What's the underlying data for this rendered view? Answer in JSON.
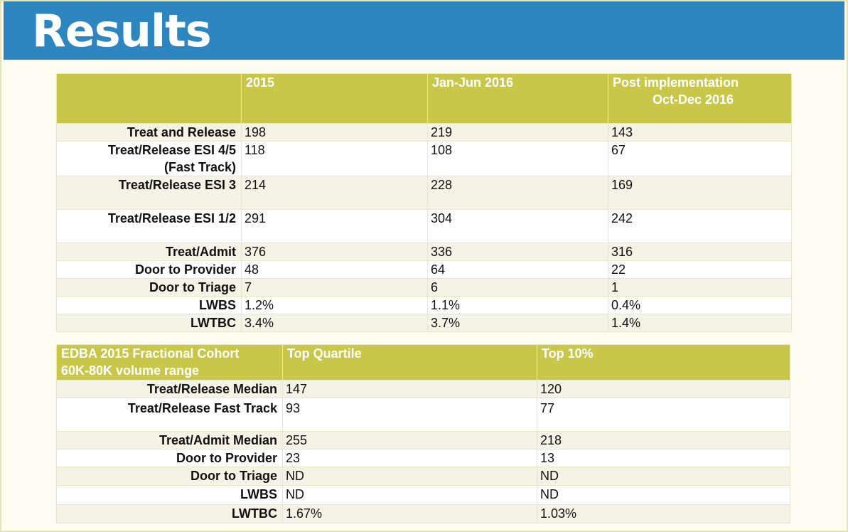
{
  "title": "Results",
  "table1": {
    "headers": [
      "",
      "2015",
      "Jan-Jun 2016",
      "Post implementation Oct-Dec 2016"
    ],
    "header_col3_line1": "Post implementation",
    "header_col3_line2": "Oct-Dec 2016",
    "rows": [
      {
        "label": "Treat and Release",
        "values": [
          "198",
          "219",
          "143"
        ]
      },
      {
        "label": "Treat/Release ESI 4/5 (Fast Track)",
        "label_line1": "Treat/Release ESI 4/5",
        "label_line2": "(Fast Track)",
        "values": [
          "118",
          "108",
          "67"
        ]
      },
      {
        "label": "Treat/Release ESI 3",
        "values": [
          "214",
          "228",
          "169"
        ]
      },
      {
        "label": "Treat/Release ESI 1/2",
        "values": [
          "291",
          "304",
          "242"
        ]
      },
      {
        "label": "Treat/Admit",
        "values": [
          "376",
          "336",
          "316"
        ]
      },
      {
        "label": "Door to Provider",
        "values": [
          "48",
          "64",
          "22"
        ]
      },
      {
        "label": "Door to Triage",
        "values": [
          "7",
          "6",
          "1"
        ]
      },
      {
        "label": "LWBS",
        "values": [
          "1.2%",
          "1.1%",
          "0.4%"
        ]
      },
      {
        "label": "LWTBC",
        "values": [
          "3.4%",
          "3.7%",
          "1.4%"
        ]
      }
    ]
  },
  "table2": {
    "headers": [
      "EDBA 2015 Fractional Cohort 60K-80K volume range",
      "Top Quartile",
      "Top 10%"
    ],
    "header_col1_line1": "EDBA 2015 Fractional Cohort",
    "header_col1_line2": "60K-80K volume range",
    "rows": [
      {
        "label": "Treat/Release Median",
        "values": [
          "147",
          "120"
        ]
      },
      {
        "label": "Treat/Release Fast Track",
        "values": [
          "93",
          "77"
        ]
      },
      {
        "label": "Treat/Admit Median",
        "values": [
          "255",
          "218"
        ]
      },
      {
        "label": "Door to Provider",
        "values": [
          "23",
          "13"
        ]
      },
      {
        "label": "Door to Triage",
        "values": [
          "ND",
          "ND"
        ]
      },
      {
        "label": "LWBS",
        "values": [
          "ND",
          "ND"
        ]
      },
      {
        "label": "LWTBC",
        "values": [
          "1.67%",
          "1.03%"
        ]
      }
    ]
  },
  "colors": {
    "title_bar": "#2e86c1",
    "header_fill": "#c8c74a",
    "row_band": "#f4f4e6"
  }
}
